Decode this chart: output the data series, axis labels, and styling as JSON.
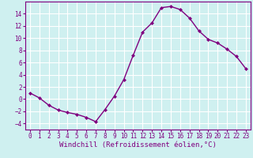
{
  "x": [
    0,
    1,
    2,
    3,
    4,
    5,
    6,
    7,
    8,
    9,
    10,
    11,
    12,
    13,
    14,
    15,
    16,
    17,
    18,
    19,
    20,
    21,
    22,
    23
  ],
  "y": [
    1,
    0.2,
    -1,
    -1.8,
    -2.2,
    -2.5,
    -3,
    -3.7,
    -1.7,
    0.5,
    3.2,
    7.2,
    11.0,
    12.5,
    15.0,
    15.2,
    14.7,
    13.3,
    11.2,
    9.8,
    9.2,
    8.2,
    7.0,
    5.0
  ],
  "line_color": "#800080",
  "marker": "D",
  "marker_size": 2.0,
  "linewidth": 1.0,
  "xlabel": "Windchill (Refroidissement éolien,°C)",
  "xlim": [
    -0.5,
    23.5
  ],
  "ylim": [
    -5,
    16
  ],
  "yticks": [
    -4,
    -2,
    0,
    2,
    4,
    6,
    8,
    10,
    12,
    14
  ],
  "xticks": [
    0,
    1,
    2,
    3,
    4,
    5,
    6,
    7,
    8,
    9,
    10,
    11,
    12,
    13,
    14,
    15,
    16,
    17,
    18,
    19,
    20,
    21,
    22,
    23
  ],
  "bg_color": "#cff0f0",
  "grid_color": "#ffffff",
  "line_purple": "#800080",
  "tick_fontsize": 5.5,
  "xlabel_fontsize": 6.5
}
